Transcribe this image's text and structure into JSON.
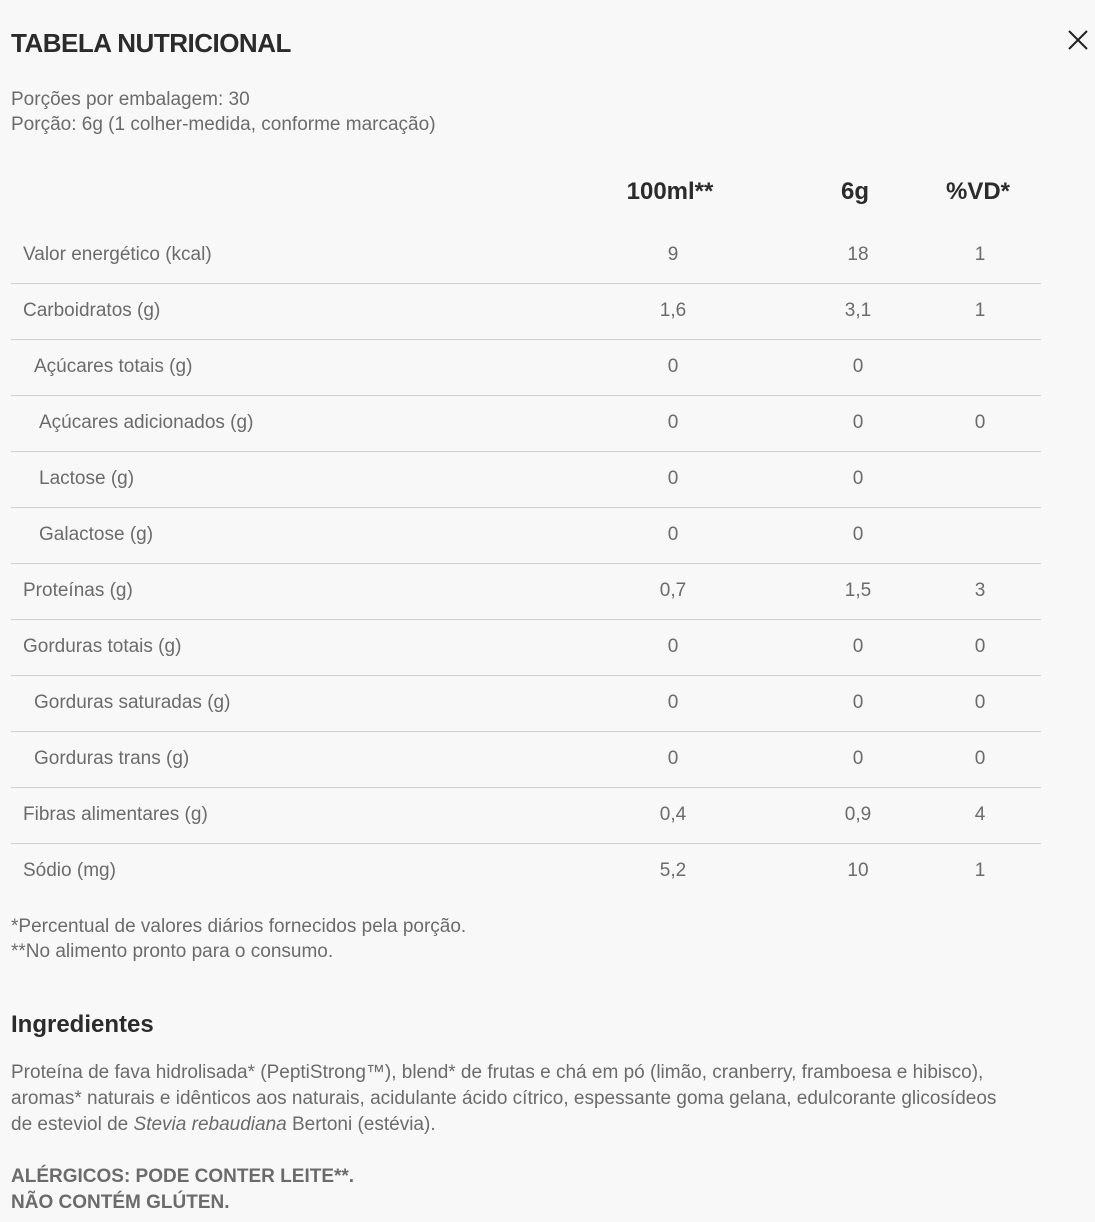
{
  "title": "TABELA NUTRICIONAL",
  "servings_per_package": "Porções por embalagem: 30",
  "serving_size": "Porção: 6g (1 colher-medida, conforme marcação)",
  "columns": [
    "100ml**",
    "6g",
    "%VD*"
  ],
  "rows": [
    {
      "label": "Valor energético (kcal)",
      "indent": 0,
      "v100": "9",
      "v6g": "18",
      "vd": "1"
    },
    {
      "label": "Carboidratos (g)",
      "indent": 0,
      "v100": "1,6",
      "v6g": "3,1",
      "vd": "1"
    },
    {
      "label": "Açúcares totais (g)",
      "indent": 1,
      "v100": "0",
      "v6g": "0",
      "vd": ""
    },
    {
      "label": "Açúcares adicionados (g)",
      "indent": 2,
      "v100": "0",
      "v6g": "0",
      "vd": "0"
    },
    {
      "label": "Lactose (g)",
      "indent": 2,
      "v100": "0",
      "v6g": "0",
      "vd": ""
    },
    {
      "label": "Galactose (g)",
      "indent": 2,
      "v100": "0",
      "v6g": "0",
      "vd": ""
    },
    {
      "label": "Proteínas (g)",
      "indent": 0,
      "v100": "0,7",
      "v6g": "1,5",
      "vd": "3"
    },
    {
      "label": "Gorduras totais (g)",
      "indent": 0,
      "v100": "0",
      "v6g": "0",
      "vd": "0"
    },
    {
      "label": "Gorduras saturadas (g)",
      "indent": 1,
      "v100": "0",
      "v6g": "0",
      "vd": "0"
    },
    {
      "label": "Gorduras trans (g)",
      "indent": 1,
      "v100": "0",
      "v6g": "0",
      "vd": "0"
    },
    {
      "label": "Fibras alimentares (g)",
      "indent": 0,
      "v100": "0,4",
      "v6g": "0,9",
      "vd": "4"
    },
    {
      "label": "Sódio (mg)",
      "indent": 0,
      "v100": "5,2",
      "v6g": "10",
      "vd": "1"
    }
  ],
  "notes": [
    "*Percentual de valores diários fornecidos pela porção.",
    "**No alimento pronto para o consumo."
  ],
  "ingredients": {
    "heading": "Ingredientes",
    "text_before": "Proteína de fava hidrolisada* (PeptiStrong™), blend* de frutas e chá em pó (limão, cranberry, framboesa e hibisco), aromas* naturais e idênticos aos naturais, acidulante ácido cítrico, espessante goma gelana, edulcorante glicosídeos de esteviol de ",
    "text_italic": "Stevia rebaudiana",
    "text_after": " Bertoni (estévia)."
  },
  "allergens": [
    "ALÉRGICOS: PODE CONTER LEITE**.",
    "NÃO CONTÉM GLÚTEN."
  ],
  "icons": {
    "close": "close-icon"
  }
}
